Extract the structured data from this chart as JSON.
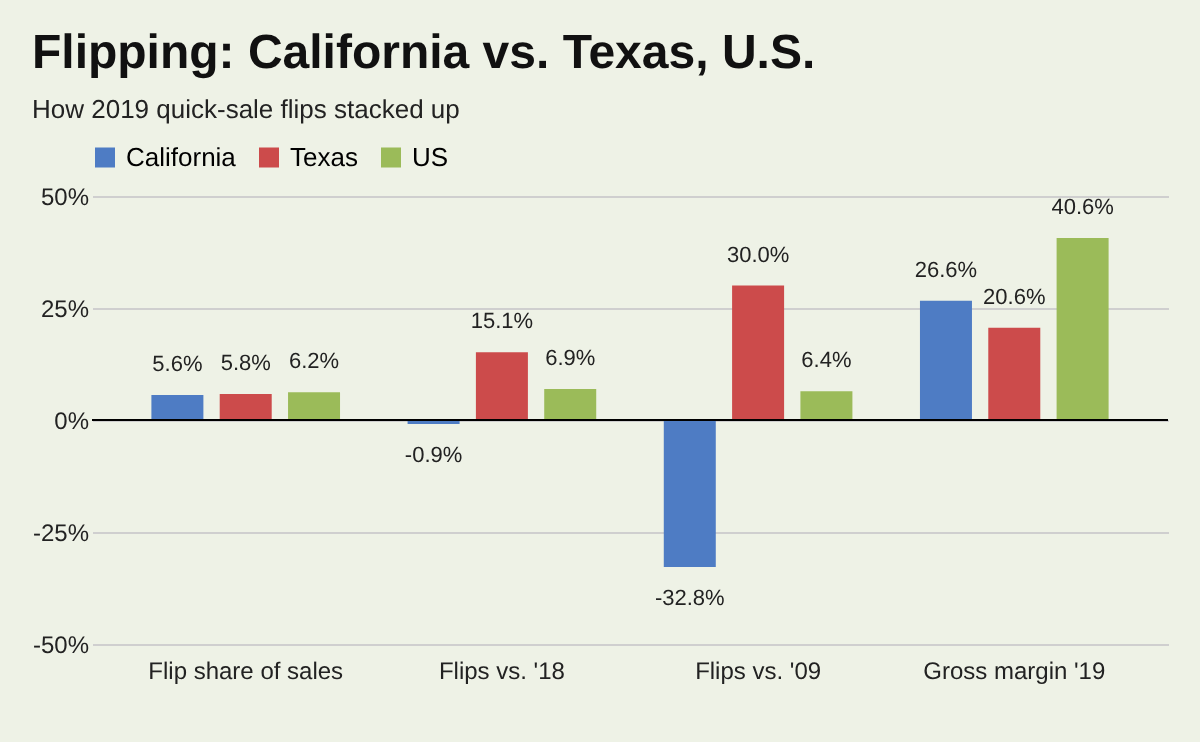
{
  "chart_data": {
    "type": "bar",
    "title": "Flipping: California vs. Texas, U.S.",
    "subtitle": "How 2019 quick-sale flips stacked up",
    "categories": [
      "Flip share of sales",
      "Flips vs. '18",
      "Flips vs. '09",
      "Gross margin '19"
    ],
    "series": [
      {
        "name": "California",
        "color": "#4e7cc4",
        "values": [
          5.6,
          -0.9,
          -32.8,
          26.6
        ],
        "value_labels": [
          "5.6%",
          "-0.9%",
          "-32.8%",
          "26.6%"
        ]
      },
      {
        "name": "Texas",
        "color": "#cc4b4b",
        "values": [
          5.8,
          15.1,
          30.0,
          20.6
        ],
        "value_labels": [
          "5.8%",
          "15.1%",
          "30.0%",
          "20.6%"
        ]
      },
      {
        "name": "US",
        "color": "#9bbb59",
        "values": [
          6.2,
          6.9,
          6.4,
          40.6
        ],
        "value_labels": [
          "6.2%",
          "6.9%",
          "6.4%",
          "40.6%"
        ]
      }
    ],
    "ylim": [
      -50,
      50
    ],
    "yticks": [
      {
        "value": -50,
        "label": "-50%"
      },
      {
        "value": -25,
        "label": "-25%"
      },
      {
        "value": 0,
        "label": "0%"
      },
      {
        "value": 25,
        "label": "25%"
      },
      {
        "value": 50,
        "label": "50%"
      }
    ],
    "grid": "y",
    "legend": "top"
  }
}
